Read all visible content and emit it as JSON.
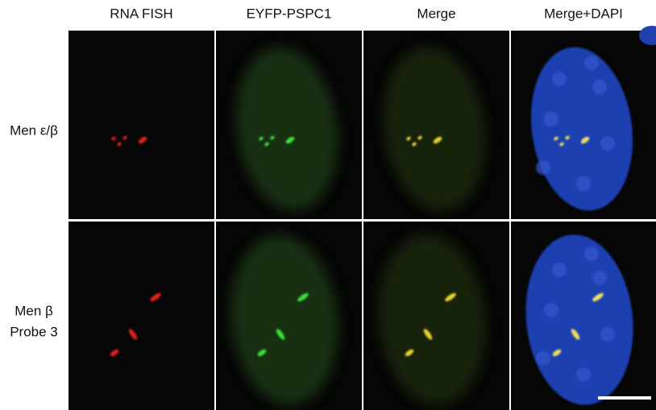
{
  "headers": [
    "RNA FISH",
    "EYFP-PSPC1",
    "Merge",
    "Merge+DAPI"
  ],
  "rows": [
    {
      "label": [
        "Men ε/β"
      ]
    },
    {
      "label": [
        "Men β",
        "Probe 3"
      ]
    }
  ]
}
